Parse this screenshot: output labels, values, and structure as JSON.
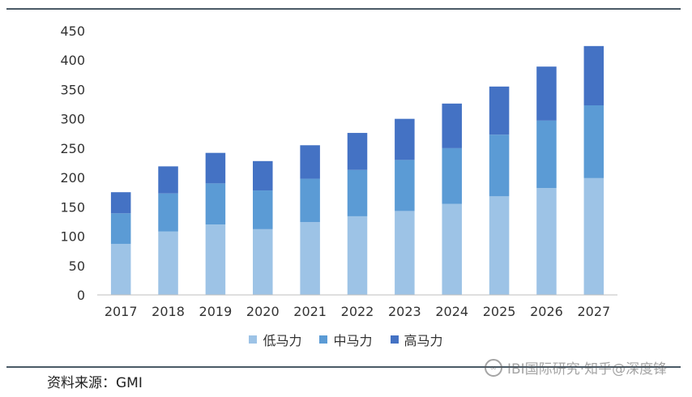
{
  "chart_data": {
    "type": "bar",
    "stacked": true,
    "categories": [
      "2017",
      "2018",
      "2019",
      "2020",
      "2021",
      "2022",
      "2023",
      "2024",
      "2025",
      "2026",
      "2027"
    ],
    "series": [
      {
        "name": "低马力",
        "color": "#9dc3e6",
        "values": [
          87,
          108,
          120,
          112,
          124,
          134,
          143,
          155,
          168,
          182,
          199
        ]
      },
      {
        "name": "中马力",
        "color": "#5b9bd5",
        "values": [
          52,
          65,
          70,
          66,
          74,
          79,
          87,
          95,
          105,
          115,
          124
        ]
      },
      {
        "name": "高马力",
        "color": "#4472c4",
        "values": [
          36,
          46,
          52,
          50,
          57,
          63,
          70,
          76,
          82,
          92,
          101
        ]
      }
    ],
    "ylim": [
      0,
      450
    ],
    "yticks": [
      "0",
      "50",
      "100",
      "150",
      "200",
      "250",
      "300",
      "350",
      "400",
      "450"
    ],
    "grid": false,
    "legend_position": "bottom"
  },
  "source_note": "资料来源：GMI",
  "watermark": "IBI国际研究·知乎@深度锋"
}
